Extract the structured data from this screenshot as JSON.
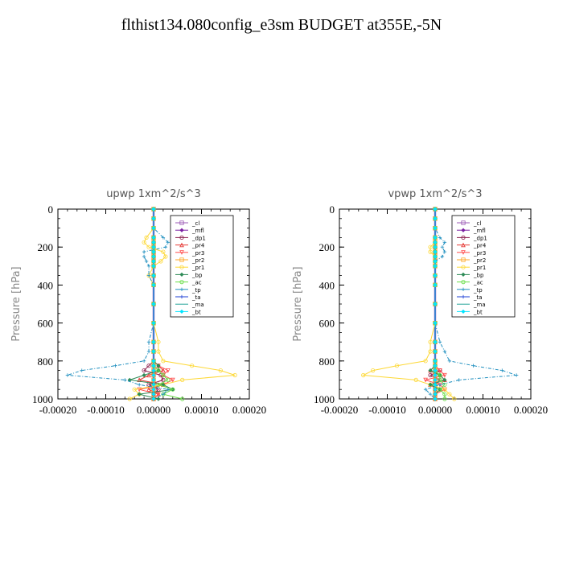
{
  "page": {
    "title": "flthist134.080config_e3sm  BUDGET at355E,-5N"
  },
  "legend_entries": [
    "_cl",
    "_mfl",
    "_dp1",
    "_pr4",
    "_pr3",
    "_pr2",
    "_pr1",
    "_bp",
    "_ac",
    "_tp",
    "_ta",
    "_ma",
    "_bt"
  ],
  "series_colors": {
    "_cl": "#9b59b6",
    "_mfl": "#7b1fa2",
    "_dp1": "#8b1a4a",
    "_pr4": "#e53935",
    "_pr3": "#ff4d4d",
    "_pr2": "#ffa726",
    "_pr1": "#fdd835",
    "_bp": "#2e8b57",
    "_ac": "#66dd44",
    "_tp": "#1f8fbf",
    "_ta": "#1c3fd6",
    "_ma": "#26a69a",
    "_bt": "#00e5ff"
  },
  "chart_data": [
    {
      "type": "line",
      "title": "upwp   1xm^2/s^3",
      "xlabel": "",
      "ylabel": "Pressure [hPa]",
      "xlim": [
        -0.0002,
        0.0002
      ],
      "ylim": [
        0,
        1000
      ],
      "y_inverted": true,
      "x_ticks": [
        "-0.00020",
        "-0.00010",
        "0.00000",
        "0.00010",
        "0.00020"
      ],
      "y_ticks": [
        "0",
        "200",
        "400",
        "600",
        "800",
        "1000"
      ],
      "legend_position": "top-right",
      "pressure_levels": [
        0,
        50,
        100,
        150,
        175,
        200,
        225,
        250,
        275,
        300,
        350,
        400,
        500,
        600,
        700,
        750,
        800,
        825,
        850,
        875,
        900,
        925,
        950,
        975,
        1000
      ],
      "series": [
        {
          "name": "_cl",
          "values": [
            0,
            0,
            0,
            0,
            0,
            0,
            0,
            0,
            0,
            0,
            0,
            0,
            0,
            0,
            0,
            0,
            0,
            0,
            0,
            0,
            0,
            0,
            0,
            0,
            0
          ]
        },
        {
          "name": "_mfl",
          "values": [
            0,
            0,
            0,
            0,
            0,
            0,
            0,
            0,
            0,
            0,
            0,
            0,
            0,
            0,
            0,
            0,
            0,
            0,
            0,
            0,
            0,
            0,
            0,
            0,
            0
          ]
        },
        {
          "name": "_dp1",
          "values": [
            0,
            0,
            0,
            0,
            0,
            0,
            0,
            0,
            0,
            0,
            0,
            0,
            0,
            0,
            0,
            0,
            0,
            -1e-05,
            -2e-05,
            1.5e-05,
            2e-05,
            -1e-05,
            1e-05,
            0,
            0
          ]
        },
        {
          "name": "_pr4",
          "values": [
            0,
            0,
            0,
            0,
            0,
            0,
            0,
            0,
            0,
            0,
            0,
            0,
            0,
            0,
            0,
            0,
            0,
            1e-05,
            2e-05,
            -1e-05,
            -3e-05,
            2e-05,
            -1e-05,
            1e-05,
            0
          ]
        },
        {
          "name": "_pr3",
          "values": [
            0,
            0,
            0,
            0,
            0,
            0,
            0,
            0,
            0,
            0,
            0,
            0,
            0,
            0,
            0,
            0,
            0,
            1e-05,
            3e-05,
            2e-05,
            4e-05,
            2e-05,
            -3e-05,
            1e-05,
            0
          ]
        },
        {
          "name": "_pr2",
          "values": [
            0,
            0,
            0,
            0,
            0,
            0,
            0,
            0,
            0,
            0,
            0,
            0,
            0,
            0,
            0,
            0,
            0,
            0,
            0,
            0,
            0,
            0,
            0,
            0,
            0
          ]
        },
        {
          "name": "_pr1",
          "values": [
            0,
            0,
            0,
            -1.5e-05,
            -2e-05,
            -1e-05,
            2e-05,
            2.5e-05,
            1.5e-05,
            0,
            -1e-05,
            0,
            0,
            0,
            1e-05,
            1e-05,
            2e-05,
            8e-05,
            0.00014,
            0.00017,
            6e-05,
            2e-05,
            -4e-05,
            -3e-05,
            -5e-05
          ]
        },
        {
          "name": "_bp",
          "values": [
            0,
            0,
            0,
            0,
            0,
            0,
            0,
            0,
            0,
            0,
            0,
            0,
            0,
            0,
            0,
            0,
            0,
            1e-05,
            1e-05,
            -2e-05,
            -5e-05,
            2e-05,
            4e-05,
            -3e-05,
            1e-05
          ]
        },
        {
          "name": "_ac",
          "values": [
            0,
            0,
            0,
            0,
            0,
            0,
            0,
            0,
            0,
            0,
            0,
            0,
            0,
            0,
            0,
            0,
            0,
            0,
            1e-05,
            2e-05,
            3e-05,
            1e-05,
            4e-05,
            2e-05,
            6e-05
          ]
        },
        {
          "name": "_tp",
          "values": [
            0,
            0,
            0,
            2e-05,
            3e-05,
            2.5e-05,
            -2e-05,
            -2e-05,
            -1.5e-05,
            -1e-05,
            -1e-05,
            0,
            0,
            0,
            -1e-05,
            -1e-05,
            -2e-05,
            -8e-05,
            -0.00015,
            -0.00018,
            -6e-05,
            -3e-05,
            3e-05,
            2e-05,
            0
          ]
        },
        {
          "name": "_ta",
          "values": [
            0,
            0,
            0,
            0,
            0,
            0,
            0,
            0,
            0,
            0,
            0,
            0,
            0,
            0,
            0,
            0,
            0,
            0,
            0,
            0,
            0,
            0,
            0,
            0,
            0
          ]
        },
        {
          "name": "_ma",
          "values": [
            0,
            0,
            0,
            0,
            0,
            0,
            0,
            0,
            0,
            0,
            0,
            0,
            0,
            0,
            0,
            0,
            0,
            0,
            0,
            0,
            0,
            0,
            0,
            0,
            0
          ]
        },
        {
          "name": "_bt",
          "values": [
            0,
            0,
            0,
            0,
            0,
            0,
            0,
            0,
            0,
            0,
            0,
            0,
            0,
            0,
            0,
            0,
            0,
            0,
            0,
            0,
            0,
            0,
            0,
            0,
            0
          ]
        }
      ]
    },
    {
      "type": "line",
      "title": "vpwp   1xm^2/s^3",
      "xlabel": "",
      "ylabel": "Pressure [hPa]",
      "xlim": [
        -0.0002,
        0.0002
      ],
      "ylim": [
        0,
        1000
      ],
      "y_inverted": true,
      "x_ticks": [
        "-0.00020",
        "-0.00010",
        "0.00000",
        "0.00010",
        "0.00020"
      ],
      "y_ticks": [
        "0",
        "200",
        "400",
        "600",
        "800",
        "1000"
      ],
      "legend_position": "top-right",
      "pressure_levels": [
        0,
        50,
        100,
        150,
        175,
        200,
        225,
        250,
        275,
        300,
        350,
        400,
        500,
        600,
        700,
        750,
        800,
        825,
        850,
        875,
        900,
        925,
        950,
        975,
        1000
      ],
      "series": [
        {
          "name": "_cl",
          "values": [
            0,
            0,
            0,
            0,
            0,
            0,
            0,
            0,
            0,
            0,
            0,
            0,
            0,
            0,
            0,
            0,
            0,
            0,
            0,
            0,
            0,
            0,
            0,
            0,
            0
          ]
        },
        {
          "name": "_mfl",
          "values": [
            0,
            0,
            0,
            0,
            0,
            0,
            0,
            0,
            0,
            0,
            0,
            0,
            0,
            0,
            0,
            0,
            0,
            0,
            0,
            0,
            0,
            0,
            0,
            0,
            0
          ]
        },
        {
          "name": "_dp1",
          "values": [
            0,
            0,
            0,
            0,
            0,
            0,
            0,
            0,
            0,
            0,
            0,
            0,
            0,
            0,
            0,
            0,
            0,
            0,
            1e-05,
            -1e-05,
            1e-05,
            0,
            0,
            0,
            0
          ]
        },
        {
          "name": "_pr4",
          "values": [
            0,
            0,
            0,
            0,
            0,
            0,
            0,
            0,
            0,
            0,
            0,
            0,
            0,
            0,
            0,
            0,
            0,
            0,
            -1e-05,
            1e-05,
            2e-05,
            -1e-05,
            1e-05,
            0,
            0
          ]
        },
        {
          "name": "_pr3",
          "values": [
            0,
            0,
            0,
            0,
            0,
            0,
            0,
            0,
            0,
            0,
            0,
            0,
            0,
            0,
            0,
            0,
            0,
            0,
            1e-05,
            2e-05,
            -2e-05,
            1e-05,
            2e-05,
            0,
            0
          ]
        },
        {
          "name": "_pr2",
          "values": [
            0,
            0,
            0,
            0,
            0,
            0,
            0,
            0,
            0,
            0,
            0,
            0,
            0,
            0,
            0,
            0,
            0,
            0,
            0,
            0,
            0,
            0,
            0,
            0,
            0
          ]
        },
        {
          "name": "_pr1",
          "values": [
            0,
            0,
            0,
            0,
            0,
            -1e-05,
            -1e-05,
            0,
            0,
            0,
            0,
            0,
            0,
            0,
            -1e-05,
            -1e-05,
            -2e-05,
            -8e-05,
            -0.00013,
            -0.00015,
            -4e-05,
            -1e-05,
            2e-05,
            3e-05,
            4e-05
          ]
        },
        {
          "name": "_bp",
          "values": [
            0,
            0,
            0,
            0,
            0,
            0,
            0,
            0,
            0,
            0,
            0,
            0,
            0,
            0,
            0,
            0,
            0,
            0,
            -1e-05,
            1e-05,
            2e-05,
            -1e-05,
            1e-05,
            0,
            0
          ]
        },
        {
          "name": "_ac",
          "values": [
            0,
            0,
            0,
            0,
            0,
            0,
            0,
            0,
            0,
            0,
            0,
            0,
            0,
            0,
            0,
            0,
            0,
            0,
            0,
            1e-05,
            1e-05,
            2e-05,
            1e-05,
            2e-05,
            2e-05
          ]
        },
        {
          "name": "_tp",
          "values": [
            0,
            0,
            0,
            1e-05,
            2e-05,
            1.5e-05,
            2e-05,
            1.5e-05,
            0,
            0,
            0,
            0,
            0,
            0,
            1e-05,
            2e-05,
            3e-05,
            8e-05,
            0.00014,
            0.00017,
            5e-05,
            1e-05,
            -2e-05,
            -1e-05,
            0
          ]
        },
        {
          "name": "_ta",
          "values": [
            0,
            0,
            0,
            0,
            0,
            0,
            0,
            0,
            0,
            0,
            0,
            0,
            0,
            0,
            0,
            0,
            0,
            0,
            0,
            0,
            0,
            0,
            0,
            0,
            0
          ]
        },
        {
          "name": "_ma",
          "values": [
            0,
            0,
            0,
            0,
            0,
            0,
            0,
            0,
            0,
            0,
            0,
            0,
            0,
            0,
            0,
            0,
            0,
            0,
            0,
            0,
            0,
            0,
            0,
            0,
            0
          ]
        },
        {
          "name": "_bt",
          "values": [
            0,
            0,
            0,
            0,
            0,
            0,
            0,
            0,
            0,
            0,
            0,
            0,
            0,
            0,
            0,
            0,
            0,
            0,
            0,
            0,
            0,
            0,
            0,
            0,
            0
          ]
        }
      ]
    }
  ]
}
